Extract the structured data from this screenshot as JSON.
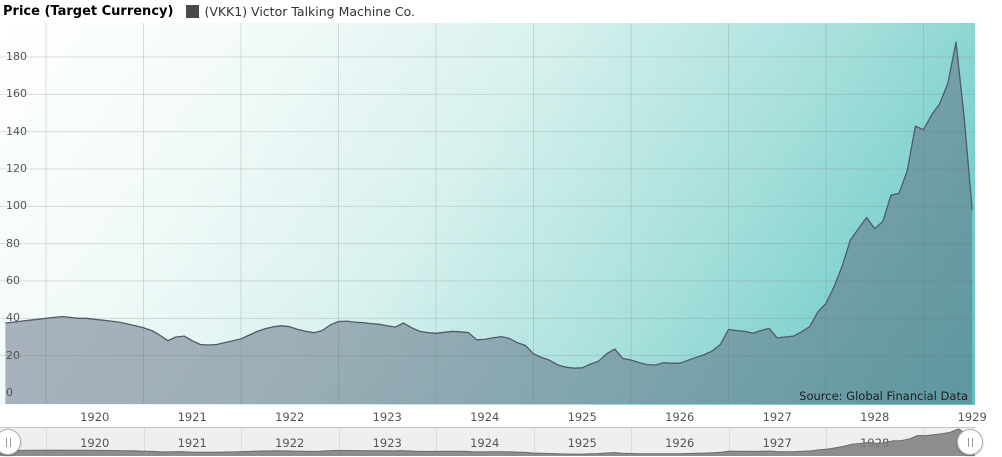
{
  "header": {
    "title": "Price (Target Currency)",
    "legend": {
      "symbol_color": "#4a4a4a",
      "label": "(VKK1) Victor Talking Machine Co."
    }
  },
  "source_label": "Source: Global Financial Data",
  "colors": {
    "series_line": "#4f5b66",
    "series_fill": "rgba(92,105,125,0.5)",
    "grid_line": "rgba(120,120,120,0.24)",
    "plot_teal": "#60c5c3",
    "nav_fill": "#7f7f7f",
    "nav_line": "#6b6b6b",
    "axis_label": "#555555"
  },
  "chart_data": {
    "type": "area",
    "title": "Price (Target Currency)",
    "xlabel": "",
    "ylabel": "",
    "x_ticks": [
      1920,
      1921,
      1922,
      1923,
      1924,
      1925,
      1926,
      1927,
      1928,
      1929
    ],
    "y_ticks": [
      0,
      20,
      40,
      60,
      80,
      100,
      120,
      140,
      160,
      180
    ],
    "ylim": [
      0,
      195
    ],
    "grid": true,
    "legend_position": "top",
    "navigator": true,
    "navigator_labels": [
      1920,
      1921,
      1922,
      1923,
      1924,
      1925,
      1926,
      1927,
      1928
    ],
    "series": [
      {
        "name": "(VKK1) Victor Talking Machine Co.",
        "start_year": 1919.5833,
        "interval_years": 0.0833333,
        "values": [
          37.5,
          38,
          38.5,
          39,
          39.5,
          40,
          40.5,
          41,
          40.5,
          40,
          40,
          39.5,
          39,
          38.5,
          38,
          37,
          36,
          35,
          33.5,
          31,
          28,
          30,
          30.5,
          28,
          26,
          25.7,
          26,
          27,
          28,
          29,
          31,
          33,
          34.5,
          35.5,
          36,
          35.5,
          34,
          33,
          32.3,
          33.5,
          36.5,
          38.3,
          38.5,
          38,
          37.7,
          37.2,
          36.8,
          36,
          35.3,
          37.5,
          35,
          33,
          32.3,
          32,
          32.5,
          33,
          32.8,
          32.3,
          28.5,
          28.7,
          29.5,
          30.2,
          29.3,
          27,
          25.5,
          21,
          19,
          17.5,
          15,
          13.8,
          13.3,
          13.5,
          15.5,
          17,
          21,
          23.5,
          18.5,
          17.7,
          16.3,
          15.2,
          15,
          16.2,
          16,
          15.9,
          17.5,
          19,
          20.5,
          22.5,
          26,
          34,
          33.5,
          33,
          32,
          33.5,
          34.6,
          29.5,
          30,
          30.5,
          32.8,
          35.5,
          43.5,
          48,
          57,
          68,
          82,
          88,
          94,
          88,
          92,
          106,
          107,
          119,
          143,
          141,
          149,
          155,
          166,
          188,
          148,
          98
        ]
      }
    ]
  }
}
